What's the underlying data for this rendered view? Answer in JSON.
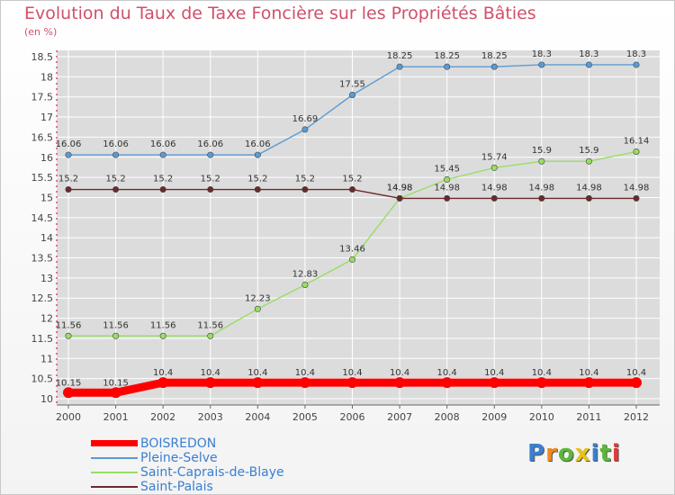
{
  "title": "Evolution du Taux de Taxe Foncière sur les Propriétés Bâties",
  "subtitle": "(en %)",
  "brand": "Proxiti",
  "colors": {
    "title": "#d0506a",
    "legend_text": "#3a7fd0",
    "axis": "#d0001a"
  },
  "chart_data": {
    "type": "line",
    "x": [
      "2000",
      "2001",
      "2002",
      "2003",
      "2004",
      "2005",
      "2006",
      "2007",
      "2008",
      "2009",
      "2010",
      "2011",
      "2012"
    ],
    "ylim": [
      10,
      18.5
    ],
    "yticks": [
      "10",
      "10.5",
      "11",
      "11.5",
      "12",
      "12.5",
      "13",
      "13.5",
      "14",
      "14.5",
      "15",
      "15.5",
      "16",
      "16.5",
      "17",
      "17.5",
      "18",
      "18.5"
    ],
    "grid": true,
    "legend_position": "bottom-left",
    "series": [
      {
        "name": "BOISREDON",
        "color": "#ff0000",
        "values": [
          10.15,
          10.15,
          10.4,
          10.4,
          10.4,
          10.4,
          10.4,
          10.4,
          10.4,
          10.4,
          10.4,
          10.4,
          10.4
        ],
        "labels": [
          "10.15",
          "10.15",
          "10.4",
          "10.4",
          "10.4",
          "10.4",
          "10.4",
          "10.4",
          "10.4",
          "10.4",
          "10.4",
          "10.4",
          "10.4"
        ]
      },
      {
        "name": "Pleine-Selve",
        "color": "#5b9bd5",
        "values": [
          16.06,
          16.06,
          16.06,
          16.06,
          16.06,
          16.69,
          17.55,
          18.25,
          18.25,
          18.25,
          18.3,
          18.3,
          18.3
        ],
        "labels": [
          "16.06",
          "16.06",
          "16.06",
          "16.06",
          "16.06",
          "16.69",
          "17.55",
          "18.25",
          "18.25",
          "18.25",
          "18.3",
          "18.3",
          "18.3"
        ]
      },
      {
        "name": "Saint-Caprais-de-Blaye",
        "color": "#99dd66",
        "values": [
          11.56,
          11.56,
          11.56,
          11.56,
          12.23,
          12.83,
          13.46,
          14.98,
          15.45,
          15.74,
          15.9,
          15.9,
          16.14
        ],
        "labels": [
          "11.56",
          "11.56",
          "11.56",
          "11.56",
          "12.23",
          "12.83",
          "13.46",
          "14.98",
          "15.45",
          "15.74",
          "15.9",
          "15.9",
          "16.14"
        ]
      },
      {
        "name": "Saint-Palais",
        "color": "#6b2a2a",
        "values": [
          15.2,
          15.2,
          15.2,
          15.2,
          15.2,
          15.2,
          15.2,
          14.98,
          14.98,
          14.98,
          14.98,
          14.98,
          14.98
        ],
        "labels": [
          "15.2",
          "15.2",
          "15.2",
          "15.2",
          "15.2",
          "15.2",
          "15.2",
          "14.98",
          "14.98",
          "14.98",
          "14.98",
          "14.98",
          "14.98"
        ]
      }
    ]
  }
}
